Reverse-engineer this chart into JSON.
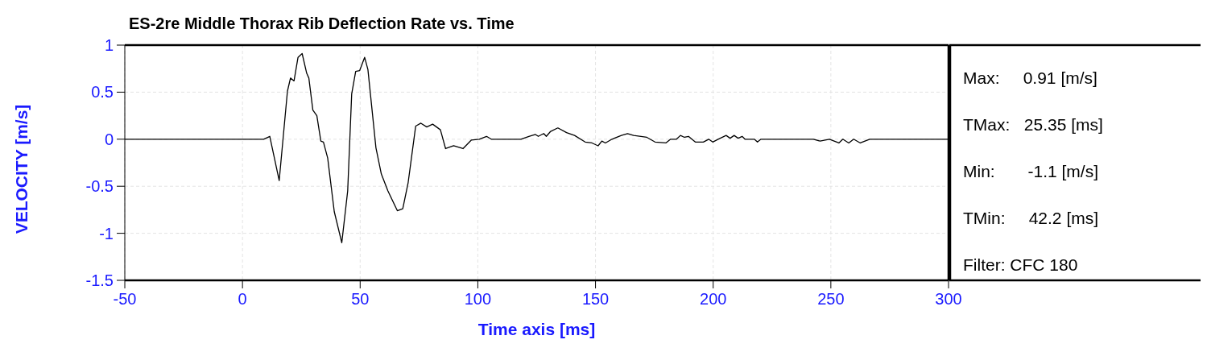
{
  "chart_data": {
    "type": "line",
    "title": "ES-2re Middle Thorax Rib Deflection Rate vs. Time",
    "xlabel": "Time axis [ms]",
    "ylabel": "VELOCITY [m/s]",
    "xlim": [
      -50,
      300
    ],
    "xticks": [
      -50,
      0,
      50,
      100,
      150,
      200,
      250,
      300
    ],
    "ylim": [
      -1.5,
      1
    ],
    "yticks": [
      -1.5,
      -1,
      -0.5,
      0,
      0.5,
      1
    ],
    "grid": true,
    "marker": "none",
    "line_style": "solid",
    "annotations": [
      "Max:     0.91 [m/s]",
      "TMax:   25.35 [ms]",
      "Min:       -1.1 [m/s]",
      "TMin:     42.2 [ms]",
      "Filter: CFC 180"
    ],
    "series": [
      {
        "color": "#000000",
        "x": [
          -50,
          9,
          11.6,
          15.6,
          19.1,
          20.4,
          21.9,
          23.6,
          25.35,
          27.3,
          28.2,
          29.9,
          31.6,
          33.3,
          34.4,
          36.2,
          39,
          42.2,
          44.7,
          46.4,
          48.1,
          49.8,
          51.9,
          53.3,
          56.7,
          59,
          61.8,
          65.8,
          68.1,
          70.4,
          73.6,
          75.8,
          78.3,
          80.8,
          84.1,
          86.3,
          89.7,
          93.7,
          97.2,
          100.6,
          103.7,
          105.7,
          118.3,
          121.7,
          124.5,
          125.7,
          128,
          129.1,
          130.8,
          134,
          137.7,
          141.1,
          145.6,
          148.5,
          151.1,
          152.7,
          154.2,
          157,
          161,
          163.6,
          166.2,
          171.8,
          175.3,
          179.9,
          181.9,
          184.4,
          186.1,
          187.8,
          189.5,
          192.4,
          195.8,
          198.1,
          199.8,
          202.1,
          205.5,
          207.2,
          208.9,
          210.6,
          212.3,
          213.5,
          217.5,
          218.8,
          220.3,
          242.6,
          245.4,
          249.4,
          253.4,
          255.1,
          257.6,
          259.7,
          262.5,
          266.5,
          300
        ],
        "values": [
          0,
          0,
          0.03,
          -0.44,
          0.51,
          0.65,
          0.62,
          0.87,
          0.91,
          0.7,
          0.65,
          0.31,
          0.25,
          -0.02,
          -0.03,
          -0.2,
          -0.77,
          -1.1,
          -0.55,
          0.48,
          0.72,
          0.73,
          0.87,
          0.74,
          -0.09,
          -0.37,
          -0.55,
          -0.76,
          -0.74,
          -0.46,
          0.14,
          0.17,
          0.13,
          0.16,
          0.1,
          -0.1,
          -0.07,
          -0.1,
          -0.01,
          0,
          0.03,
          0,
          0,
          0.03,
          0.05,
          0.03,
          0.06,
          0.03,
          0.08,
          0.12,
          0.07,
          0.04,
          -0.03,
          -0.04,
          -0.07,
          -0.02,
          -0.04,
          0,
          0.04,
          0.06,
          0.04,
          0.02,
          -0.03,
          -0.04,
          0,
          0,
          0.04,
          0.02,
          0.03,
          -0.03,
          -0.03,
          0,
          -0.03,
          0,
          0.04,
          0.01,
          0.04,
          0.01,
          0.03,
          0,
          0,
          -0.03,
          0,
          0,
          -0.02,
          0,
          -0.04,
          0,
          -0.04,
          0,
          -0.04,
          0,
          0
        ]
      }
    ]
  }
}
